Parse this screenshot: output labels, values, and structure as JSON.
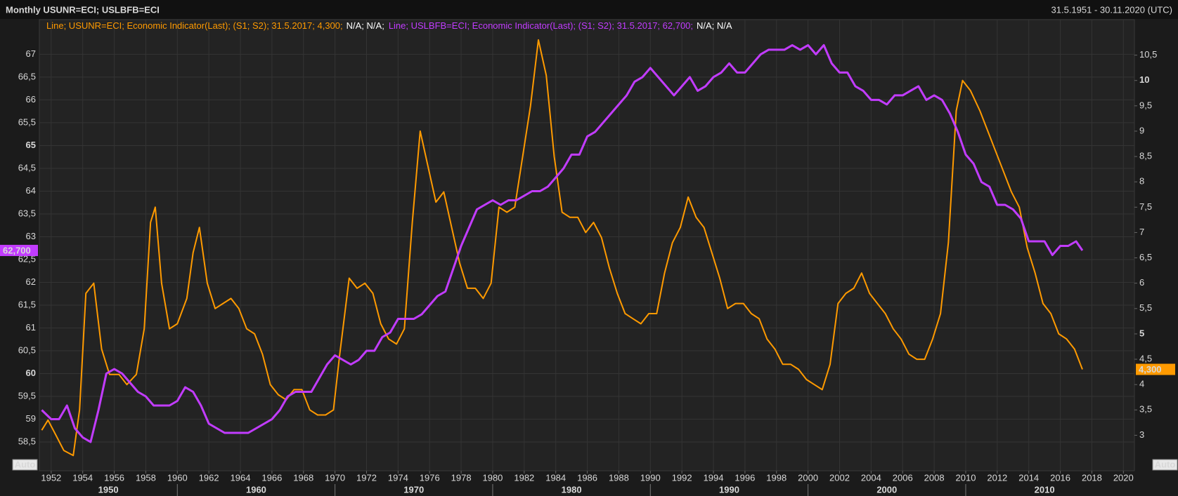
{
  "chart_data": {
    "type": "line",
    "title": "Monthly USUNR=ECI; USLBFB=ECI",
    "subtitle": "31.5.1951 - 30.11.2020 (UTC)",
    "auto_label": "Auto",
    "grid": true,
    "xlim": [
      1951.25,
      2020.7
    ],
    "xticks": [
      1952,
      1954,
      1956,
      1958,
      1960,
      1962,
      1964,
      1966,
      1968,
      1970,
      1972,
      1974,
      1976,
      1978,
      1980,
      1982,
      1984,
      1986,
      1988,
      1990,
      1992,
      1994,
      1996,
      1998,
      2000,
      2002,
      2004,
      2006,
      2008,
      2010,
      2012,
      2014,
      2016,
      2018,
      2020
    ],
    "decades": [
      1950,
      1960,
      1970,
      1980,
      1990,
      2000,
      2010
    ],
    "ylim": [
      57.87,
      67.76
    ],
    "yticks": [
      {
        "value": 58.5,
        "label": "58,5"
      },
      59,
      {
        "value": 59.5,
        "label": "59,5"
      },
      60,
      {
        "value": 60.5,
        "label": "60,5"
      },
      61,
      {
        "value": 61.5,
        "label": "61,5"
      },
      62,
      {
        "value": 62.5,
        "label": "62,5"
      },
      63,
      {
        "value": 63.5,
        "label": "63,5"
      },
      64,
      {
        "value": 64.5,
        "label": "64,5"
      },
      65,
      {
        "value": 65.5,
        "label": "65,5"
      },
      66,
      {
        "value": 66.5,
        "label": "66,5"
      },
      67
    ],
    "y2lim": [
      2.3,
      11.2
    ],
    "y2ticks": [
      3,
      {
        "value": 3.5,
        "label": "3,5"
      },
      4,
      {
        "value": 4.5,
        "label": "4,5"
      },
      5,
      {
        "value": 5.5,
        "label": "5,5"
      },
      6,
      {
        "value": 6.5,
        "label": "6,5"
      },
      7,
      {
        "value": 7.5,
        "label": "7,5"
      },
      8,
      {
        "value": 8.5,
        "label": "8,5"
      },
      9,
      {
        "value": 9.5,
        "label": "9,5"
      },
      10,
      {
        "value": 10.5,
        "label": "10,5"
      }
    ],
    "series": [
      {
        "color": "#ff9a00",
        "axis": "y2",
        "legend_text": "Line; USUNR=ECI; Economic Indicator(Last); (S1; S2); 31.5.2017; 4,300;",
        "legend_extra": "N/A; N/A;",
        "last_value": {
          "value": 4.3,
          "label": "4,300"
        },
        "x": [
          1951.4,
          1951.8,
          1952.3,
          1952.8,
          1953.4,
          1953.8,
          1954.2,
          1954.7,
          1955.2,
          1955.7,
          1956.3,
          1956.8,
          1957.4,
          1957.9,
          1958.3,
          1958.6,
          1959.0,
          1959.5,
          1960.0,
          1960.6,
          1961.0,
          1961.4,
          1961.9,
          1962.4,
          1962.9,
          1963.4,
          1963.9,
          1964.4,
          1964.9,
          1965.4,
          1965.9,
          1966.4,
          1966.9,
          1967.4,
          1967.9,
          1968.4,
          1968.9,
          1969.4,
          1969.9,
          1970.3,
          1970.9,
          1971.4,
          1971.9,
          1972.4,
          1972.9,
          1973.4,
          1973.9,
          1974.4,
          1974.9,
          1975.4,
          1975.9,
          1976.4,
          1976.9,
          1977.4,
          1977.9,
          1978.4,
          1978.9,
          1979.4,
          1979.9,
          1980.4,
          1980.9,
          1981.4,
          1981.9,
          1982.4,
          1982.9,
          1983.4,
          1983.9,
          1984.4,
          1984.9,
          1985.4,
          1985.9,
          1986.4,
          1986.9,
          1987.4,
          1987.9,
          1988.4,
          1988.9,
          1989.4,
          1989.9,
          1990.4,
          1990.9,
          1991.4,
          1991.9,
          1992.4,
          1992.9,
          1993.4,
          1993.9,
          1994.4,
          1994.9,
          1995.4,
          1995.9,
          1996.4,
          1996.9,
          1997.4,
          1997.9,
          1998.4,
          1998.9,
          1999.4,
          1999.9,
          2000.4,
          2000.9,
          2001.4,
          2001.9,
          2002.4,
          2002.9,
          2003.4,
          2003.9,
          2004.4,
          2004.9,
          2005.4,
          2005.9,
          2006.4,
          2006.9,
          2007.4,
          2007.9,
          2008.4,
          2008.9,
          2009.4,
          2009.8,
          2010.3,
          2010.9,
          2011.4,
          2011.9,
          2012.4,
          2012.9,
          2013.4,
          2013.9,
          2014.4,
          2014.9,
          2015.4,
          2015.9,
          2016.4,
          2016.9,
          2017.4
        ],
        "values": [
          3.1,
          3.3,
          3.0,
          2.7,
          2.6,
          3.5,
          5.8,
          6.0,
          4.7,
          4.2,
          4.2,
          4.0,
          4.2,
          5.1,
          7.2,
          7.5,
          6.0,
          5.1,
          5.2,
          5.7,
          6.6,
          7.1,
          6.0,
          5.5,
          5.6,
          5.7,
          5.5,
          5.1,
          5.0,
          4.6,
          4.0,
          3.8,
          3.7,
          3.9,
          3.9,
          3.5,
          3.4,
          3.4,
          3.5,
          4.6,
          6.1,
          5.9,
          6.0,
          5.8,
          5.2,
          4.9,
          4.8,
          5.1,
          7.2,
          9.0,
          8.3,
          7.6,
          7.8,
          7.1,
          6.4,
          5.9,
          5.9,
          5.7,
          6.0,
          7.5,
          7.4,
          7.5,
          8.5,
          9.5,
          10.8,
          10.1,
          8.5,
          7.4,
          7.3,
          7.3,
          7.0,
          7.2,
          6.9,
          6.3,
          5.8,
          5.4,
          5.3,
          5.2,
          5.4,
          5.4,
          6.2,
          6.8,
          7.1,
          7.7,
          7.3,
          7.1,
          6.6,
          6.1,
          5.5,
          5.6,
          5.6,
          5.4,
          5.3,
          4.9,
          4.7,
          4.4,
          4.4,
          4.3,
          4.1,
          4.0,
          3.9,
          4.4,
          5.6,
          5.8,
          5.9,
          6.2,
          5.8,
          5.6,
          5.4,
          5.1,
          4.9,
          4.6,
          4.5,
          4.5,
          4.9,
          5.4,
          6.8,
          9.4,
          10.0,
          9.8,
          9.4,
          9.0,
          8.6,
          8.2,
          7.8,
          7.5,
          6.7,
          6.2,
          5.6,
          5.4,
          5.0,
          4.9,
          4.7,
          4.3
        ]
      },
      {
        "color": "#c23cff",
        "legend_text": "Line; USLBFB=ECI; Economic Indicator(Last); (S1; S2); 31.5.2017; 62,700;",
        "legend_extra": "N/A; N/A",
        "last_value": {
          "value": 62.7,
          "label": "62,700"
        },
        "x": [
          1951.4,
          1952,
          1952.5,
          1953,
          1953.5,
          1954,
          1954.5,
          1955,
          1955.5,
          1956,
          1956.5,
          1957,
          1957.5,
          1958,
          1958.5,
          1959,
          1959.5,
          1960,
          1960.5,
          1961,
          1961.5,
          1962,
          1962.5,
          1963,
          1963.5,
          1964,
          1964.5,
          1965,
          1965.5,
          1966,
          1966.5,
          1967,
          1967.5,
          1968,
          1968.5,
          1969,
          1969.5,
          1970,
          1970.5,
          1971,
          1971.5,
          1972,
          1972.5,
          1973,
          1973.5,
          1974,
          1974.5,
          1975,
          1975.5,
          1976,
          1976.5,
          1977,
          1977.5,
          1978,
          1978.5,
          1979,
          1979.5,
          1980,
          1980.5,
          1981,
          1981.5,
          1982,
          1982.5,
          1983,
          1983.5,
          1984,
          1984.5,
          1985,
          1985.5,
          1986,
          1986.5,
          1987,
          1987.5,
          1988,
          1988.5,
          1989,
          1989.5,
          1990,
          1990.5,
          1991,
          1991.5,
          1992,
          1992.5,
          1993,
          1993.5,
          1994,
          1994.5,
          1995,
          1995.5,
          1996,
          1996.5,
          1997,
          1997.5,
          1998,
          1998.5,
          1999,
          1999.5,
          2000,
          2000.5,
          2001,
          2001.5,
          2002,
          2002.5,
          2003,
          2003.5,
          2004,
          2004.5,
          2005,
          2005.5,
          2006,
          2006.5,
          2007,
          2007.5,
          2008,
          2008.5,
          2009,
          2009.5,
          2010,
          2010.5,
          2011,
          2011.5,
          2012,
          2012.5,
          2013,
          2013.5,
          2014,
          2014.5,
          2015,
          2015.5,
          2016,
          2016.5,
          2017,
          2017.4
        ],
        "values": [
          59.2,
          59.0,
          59.0,
          59.3,
          58.8,
          58.6,
          58.5,
          59.2,
          60.0,
          60.1,
          60.0,
          59.8,
          59.6,
          59.5,
          59.3,
          59.3,
          59.3,
          59.4,
          59.7,
          59.6,
          59.3,
          58.9,
          58.8,
          58.7,
          58.7,
          58.7,
          58.7,
          58.8,
          58.9,
          59.0,
          59.2,
          59.5,
          59.6,
          59.6,
          59.6,
          59.9,
          60.2,
          60.4,
          60.3,
          60.2,
          60.3,
          60.5,
          60.5,
          60.8,
          60.9,
          61.2,
          61.2,
          61.2,
          61.3,
          61.5,
          61.7,
          61.8,
          62.3,
          62.8,
          63.2,
          63.6,
          63.7,
          63.8,
          63.7,
          63.8,
          63.8,
          63.9,
          64.0,
          64.0,
          64.1,
          64.3,
          64.5,
          64.8,
          64.8,
          65.2,
          65.3,
          65.5,
          65.7,
          65.9,
          66.1,
          66.4,
          66.5,
          66.7,
          66.5,
          66.3,
          66.1,
          66.3,
          66.5,
          66.2,
          66.3,
          66.5,
          66.6,
          66.8,
          66.6,
          66.6,
          66.8,
          67.0,
          67.1,
          67.1,
          67.1,
          67.2,
          67.1,
          67.2,
          67.0,
          67.2,
          66.8,
          66.6,
          66.6,
          66.3,
          66.2,
          66.0,
          66.0,
          65.9,
          66.1,
          66.1,
          66.2,
          66.3,
          66.0,
          66.1,
          66.0,
          65.7,
          65.3,
          64.8,
          64.6,
          64.2,
          64.1,
          63.7,
          63.7,
          63.6,
          63.4,
          62.9,
          62.9,
          62.9,
          62.6,
          62.8,
          62.8,
          62.9,
          62.7
        ]
      }
    ]
  }
}
